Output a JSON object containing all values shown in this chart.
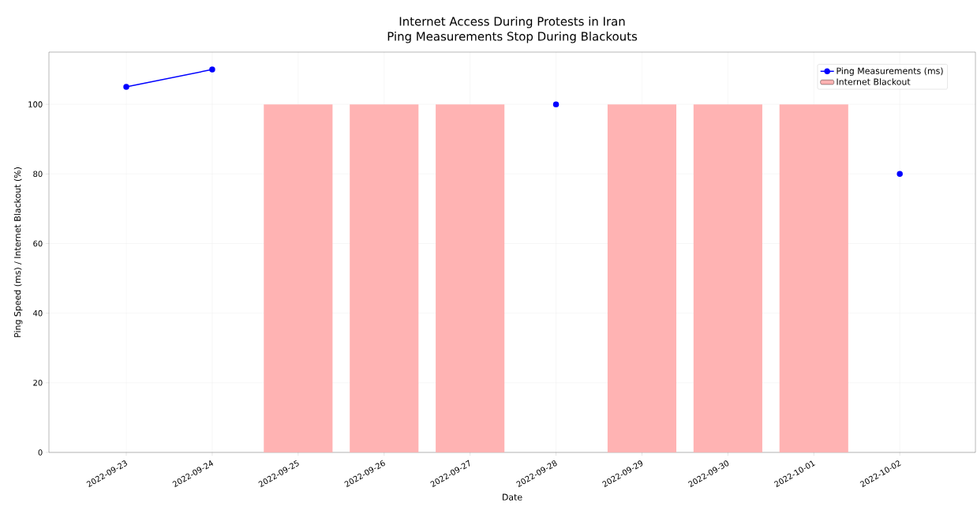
{
  "chart_data": {
    "type": "line",
    "title": "Internet Access During Protests in Iran",
    "subtitle": "Ping Measurements Stop During Blackouts",
    "xlabel": "Date",
    "ylabel": "Ping Speed (ms) / Internet Blackout (%)",
    "categories": [
      "2022-09-23",
      "2022-09-24",
      "2022-09-25",
      "2022-09-26",
      "2022-09-27",
      "2022-09-28",
      "2022-09-29",
      "2022-09-30",
      "2022-10-01",
      "2022-10-02"
    ],
    "series": [
      {
        "name": "Ping Measurements (ms)",
        "color": "#0000ff",
        "values": [
          105,
          110,
          null,
          null,
          null,
          100,
          null,
          null,
          null,
          80
        ]
      },
      {
        "name": "Internet Blackout",
        "type": "bar",
        "color": "#ffb3b3",
        "values": [
          null,
          null,
          100,
          100,
          100,
          null,
          100,
          100,
          100,
          null
        ]
      }
    ],
    "ylim": [
      0,
      115
    ],
    "yticks": [
      0,
      20,
      40,
      60,
      80,
      100
    ],
    "grid": true,
    "legend": "top right",
    "marker": "circle",
    "line_style": "solid"
  }
}
